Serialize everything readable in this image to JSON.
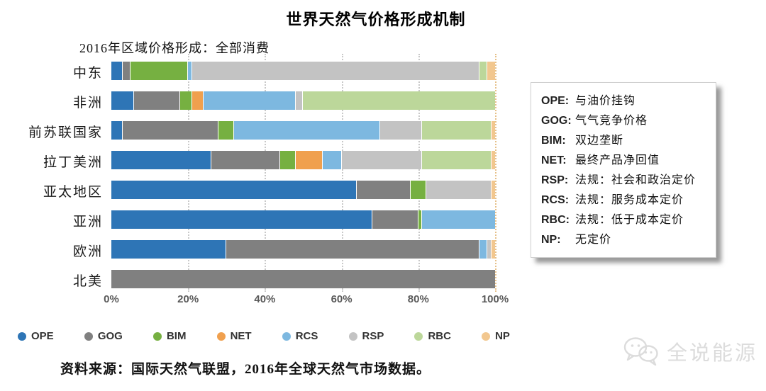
{
  "title": "世界天然气价格形成机制",
  "subtitle": "2016年区域价格形成：全部消费",
  "source": "资料来源：国际天然气联盟，2016年全球天然气市场数据。",
  "watermark": "全说能源",
  "colors": {
    "ope": "#2e75b6",
    "gog": "#808080",
    "bim": "#76b041",
    "net": "#f0a04e",
    "rcs": "#7db8e0",
    "rsp": "#c3c3c3",
    "rbc": "#bcd79a",
    "np": "#f2c78f",
    "grid": "#c9c9c9",
    "grid_100": "#e6c089",
    "axis_text": "#595959"
  },
  "legend_box": {
    "items": [
      {
        "code": "OPE:",
        "desc": "与油价挂钩"
      },
      {
        "code": "GOG:",
        "desc": "气气竞争价格"
      },
      {
        "code": "BIM:",
        "desc": "双边垄断"
      },
      {
        "code": "NET:",
        "desc": "最终产品净回值"
      },
      {
        "code": "RSP:",
        "desc": "法规：社会和政治定价"
      },
      {
        "code": "RCS:",
        "desc": "法规：服务成本定价"
      },
      {
        "code": "RBC:",
        "desc": "法规：低于成本定价"
      },
      {
        "code": "NP:",
        "desc": "无定价"
      }
    ]
  },
  "chart_data": {
    "type": "bar",
    "orientation": "horizontal",
    "stacked": true,
    "unit": "percent",
    "title": "2016年区域价格形成：全部消费",
    "categories": [
      "中东",
      "非洲",
      "前苏联国家",
      "拉丁美洲",
      "亚太地区",
      "亚洲",
      "欧洲",
      "北美"
    ],
    "series": [
      {
        "name": "OPE",
        "color": "#2e75b6",
        "values": [
          3,
          6,
          3,
          26,
          64,
          68,
          30,
          0
        ]
      },
      {
        "name": "GOG",
        "color": "#808080",
        "values": [
          2,
          12,
          25,
          18,
          14,
          12,
          66,
          100
        ]
      },
      {
        "name": "BIM",
        "color": "#76b041",
        "values": [
          15,
          3,
          4,
          4,
          4,
          1,
          0,
          0
        ]
      },
      {
        "name": "NET",
        "color": "#f0a04e",
        "values": [
          0,
          3,
          0,
          7,
          0,
          0,
          0,
          0
        ]
      },
      {
        "name": "RCS",
        "color": "#7db8e0",
        "values": [
          1,
          24,
          38,
          5,
          0,
          19,
          2,
          0
        ]
      },
      {
        "name": "RSP",
        "color": "#c3c3c3",
        "values": [
          75,
          2,
          11,
          21,
          17,
          0,
          1,
          0
        ]
      },
      {
        "name": "RBC",
        "color": "#bcd79a",
        "values": [
          2,
          50,
          18,
          18,
          0,
          0,
          0,
          0
        ]
      },
      {
        "name": "NP",
        "color": "#f2c78f",
        "values": [
          2,
          0,
          1,
          1,
          1,
          0,
          1,
          0
        ]
      }
    ],
    "x_ticks": [
      "0%",
      "20%",
      "40%",
      "60%",
      "80%",
      "100%"
    ],
    "xlim": [
      0,
      100
    ],
    "grid": "dotted-vertical",
    "legend_position": "bottom"
  }
}
